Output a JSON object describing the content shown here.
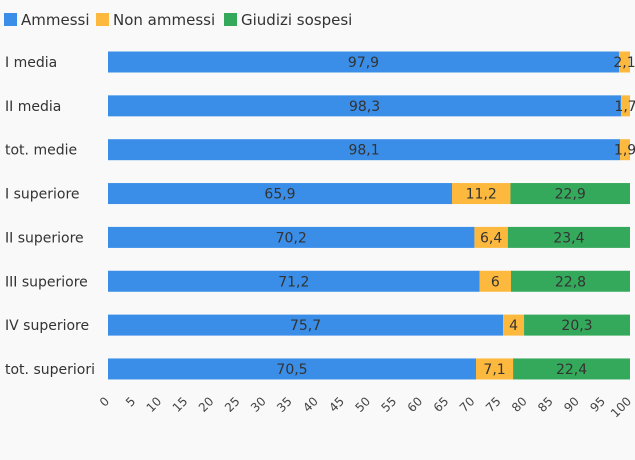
{
  "chart_data": {
    "type": "bar",
    "orientation": "horizontal",
    "stacked": true,
    "title": "",
    "xlabel": "",
    "ylabel": "",
    "xlim": [
      0,
      100
    ],
    "grid": false,
    "legend_position": "top-left",
    "categories": [
      "I media",
      "II media",
      "tot. medie",
      "I superiore",
      "II superiore",
      "III superiore",
      "IV superiore",
      "tot. superiori"
    ],
    "series": [
      {
        "name": "Ammessi",
        "color": "#3a8ee8",
        "values": [
          97.9,
          98.3,
          98.1,
          65.9,
          70.2,
          71.2,
          75.7,
          70.5
        ],
        "labels": [
          "97,9",
          "98,3",
          "98,1",
          "65,9",
          "70,2",
          "71,2",
          "75,7",
          "70,5"
        ]
      },
      {
        "name": "Non ammessi",
        "color": "#fdb93d",
        "values": [
          2.1,
          1.7,
          1.9,
          11.2,
          6.4,
          6,
          4,
          7.1
        ],
        "labels": [
          "2,1",
          "1,7",
          "1,9",
          "11,2",
          "6,4",
          "6",
          "4",
          "7,1"
        ]
      },
      {
        "name": "Giudizi sospesi",
        "color": "#35a95b",
        "values": [
          0,
          0,
          0,
          22.9,
          23.4,
          22.8,
          20.3,
          22.4
        ],
        "labels": [
          "",
          "",
          "",
          "22,9",
          "23,4",
          "22,8",
          "20,3",
          "22,4"
        ]
      }
    ],
    "tick_labels": [
      "0",
      "5",
      "10",
      "15",
      "20",
      "25",
      "30",
      "35",
      "40",
      "45",
      "50",
      "55",
      "60",
      "65",
      "70",
      "75",
      "80",
      "85",
      "90",
      "95",
      "100"
    ]
  }
}
